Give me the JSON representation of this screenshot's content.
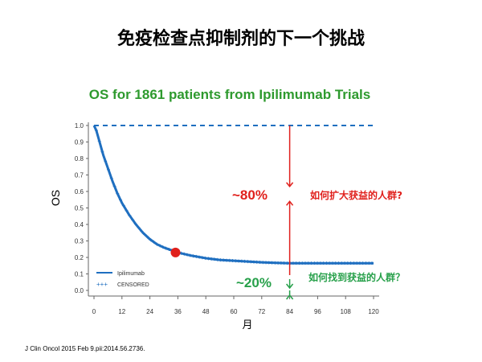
{
  "slide": {
    "title": "免疫检查点抑制剂的下一个挑战",
    "footnote": "J Clin Oncol 2015 Feb 9.pii:2014.56.2736."
  },
  "colors": {
    "curve": "#1f6fc0",
    "dashed_line": "#1f6fc0",
    "arrow_red": "#e0201c",
    "arrow_green": "#27a04a",
    "title_green": "#2e9a2e",
    "marker_red": "#e0201c"
  },
  "annotations": {
    "pct_80": "~80%",
    "question_80": "如何扩大获益的人群?",
    "pct_20": "~20%",
    "question_20": "如何找到获益的人群？"
  },
  "chart_data": {
    "type": "line",
    "title": "OS for 1861 patients from Ipilimumab Trials",
    "xlabel": "月",
    "ylabel": "OS",
    "xlim": [
      0,
      120
    ],
    "ylim": [
      0,
      1.0
    ],
    "x_ticks": [
      0,
      12,
      24,
      36,
      48,
      60,
      72,
      84,
      96,
      108,
      120
    ],
    "y_ticks": [
      0.0,
      0.1,
      0.2,
      0.3,
      0.4,
      0.5,
      0.6,
      0.7,
      0.8,
      0.9,
      1.0
    ],
    "y_tick_labels": [
      "0.0",
      "0.1",
      "0.2",
      "0.3",
      "0.4",
      "0.5",
      "0.6",
      "0.7",
      "0.8",
      "0.9",
      "1.0"
    ],
    "legend": {
      "placement": "bottom-left",
      "entries": [
        "Ipilimumab",
        "CENSORED"
      ]
    },
    "series": [
      {
        "name": "Ipilimumab",
        "x": [
          0,
          1,
          2,
          3,
          4,
          6,
          8,
          10,
          12,
          15,
          18,
          21,
          24,
          27,
          30,
          33,
          36,
          42,
          48,
          54,
          60,
          66,
          72,
          78,
          84,
          90,
          96,
          102,
          108,
          114,
          120
        ],
        "y": [
          1.0,
          0.97,
          0.92,
          0.87,
          0.82,
          0.74,
          0.66,
          0.59,
          0.53,
          0.46,
          0.4,
          0.35,
          0.31,
          0.28,
          0.26,
          0.245,
          0.23,
          0.21,
          0.195,
          0.185,
          0.18,
          0.175,
          0.17,
          0.167,
          0.165,
          0.165,
          0.165,
          0.165,
          0.165,
          0.165,
          0.165
        ]
      }
    ],
    "reference_line": {
      "y": 1.0,
      "style": "dashed"
    },
    "highlight_point": {
      "x": 35,
      "y": 0.23
    },
    "split_at": {
      "x": 84,
      "y": 0.2
    }
  }
}
